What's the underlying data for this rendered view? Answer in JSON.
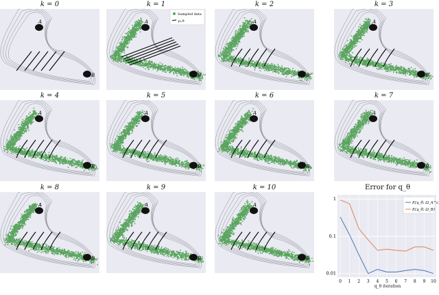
{
  "panels": [
    {
      "id": "k0",
      "title": "k = 0",
      "contours_only": true,
      "labels": {
        "a": "A",
        "b": "B"
      }
    },
    {
      "id": "k1",
      "title": "k = 1",
      "labels": {
        "a": "A",
        "b": "B"
      },
      "legend": {
        "sampled": "Sampled data",
        "paths": "γ₀,θ"
      }
    },
    {
      "id": "k2",
      "title": "k = 2",
      "labels": {
        "a": "A",
        "b": "B"
      }
    },
    {
      "id": "k3",
      "title": "k = 3",
      "labels": {
        "a": "A",
        "b": "B"
      }
    },
    {
      "id": "k4",
      "title": "k = 4",
      "labels": {
        "a": "A",
        "b": "B"
      }
    },
    {
      "id": "k5",
      "title": "k = 5",
      "labels": {
        "a": "A",
        "b": "B"
      }
    },
    {
      "id": "k6",
      "title": "k = 6",
      "labels": {
        "a": "A",
        "b": "B"
      }
    },
    {
      "id": "k7",
      "title": "k = 7",
      "labels": {
        "a": "A",
        "b": "B"
      }
    },
    {
      "id": "k8",
      "title": "k = 8",
      "labels": {
        "a": "A",
        "b": "B"
      }
    },
    {
      "id": "k9",
      "title": "k = 9",
      "labels": {
        "a": "A",
        "b": "B"
      }
    },
    {
      "id": "k10",
      "title": "k = 10",
      "labels": {
        "a": "A",
        "b": "B"
      }
    }
  ],
  "colors": {
    "panel_bg": "#eaeaf2",
    "sample_green": "#5aa55f",
    "well_black": "#111111",
    "series1": "#4c72b0",
    "series2": "#dd8452"
  },
  "chart_data": {
    "type": "line",
    "title": "Error for q_θ",
    "xlabel": "q_θ iteration",
    "ylabel": "",
    "x": [
      0,
      1,
      2,
      3,
      4,
      5,
      6,
      7,
      8,
      9,
      10
    ],
    "yscale": "log",
    "ylim": [
      0.008,
      1.3
    ],
    "yticks": [
      {
        "v": 1,
        "label": "1"
      },
      {
        "v": 0.1,
        "label": "0.1"
      },
      {
        "v": 0.01,
        "label": "0.01"
      }
    ],
    "series": [
      {
        "name": "E(q_θ; Ω_A^c)",
        "color": "#4c72b0",
        "values": [
          0.33,
          0.11,
          0.032,
          0.01,
          0.013,
          0.011,
          0.011,
          0.012,
          0.013,
          0.012,
          0.01
        ]
      },
      {
        "name": "E(q_θ; Ω_B)",
        "color": "#dd8452",
        "values": [
          0.95,
          0.75,
          0.16,
          0.08,
          0.042,
          0.045,
          0.042,
          0.04,
          0.052,
          0.052,
          0.042
        ]
      }
    ],
    "legend": "top-right",
    "grid": true
  }
}
